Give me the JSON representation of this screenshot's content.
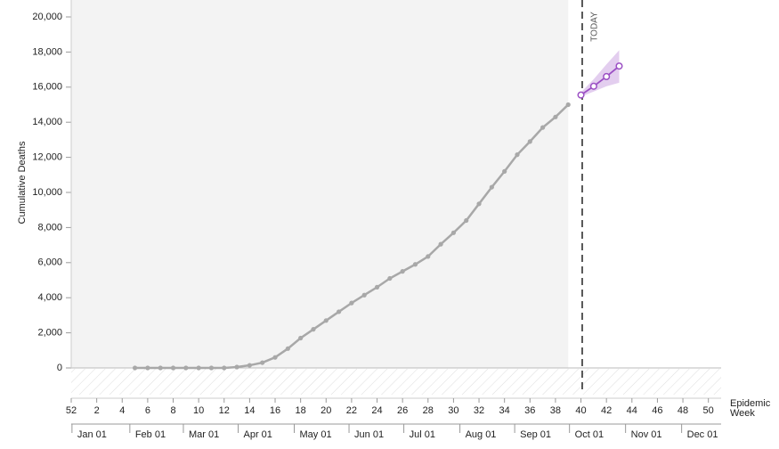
{
  "chart_data": {
    "type": "line",
    "y_label": "Cumulative Deaths",
    "x_label": "Epidemic Week",
    "today_label": "TODAY",
    "today_x": 40.1,
    "observed_until": 39,
    "xlim": [
      0,
      51
    ],
    "ylim": [
      0,
      20000
    ],
    "xticks": [
      {
        "value": 0,
        "label": "52"
      },
      2,
      4,
      6,
      8,
      10,
      12,
      14,
      16,
      18,
      20,
      22,
      24,
      26,
      28,
      30,
      32,
      34,
      36,
      38,
      40,
      42,
      44,
      46,
      48,
      50
    ],
    "month_ticks": [
      {
        "value": 0.06,
        "label": "Jan 01"
      },
      {
        "value": 4.6,
        "label": "Feb 01"
      },
      {
        "value": 8.8,
        "label": "Mar 01"
      },
      {
        "value": 13.1,
        "label": "Apr 01"
      },
      {
        "value": 17.5,
        "label": "May 01"
      },
      {
        "value": 21.8,
        "label": "Jun 01"
      },
      {
        "value": 26.1,
        "label": "Jul 01"
      },
      {
        "value": 30.5,
        "label": "Aug 01"
      },
      {
        "value": 34.8,
        "label": "Sep 01"
      },
      {
        "value": 39.1,
        "label": "Oct 01"
      },
      {
        "value": 43.5,
        "label": "Nov 01"
      },
      {
        "value": 47.9,
        "label": "Dec 01"
      }
    ],
    "yticks": [
      0,
      {
        "value": 2000,
        "label": "2,000"
      },
      {
        "value": 4000,
        "label": "4,000"
      },
      {
        "value": 6000,
        "label": "6,000"
      },
      {
        "value": 8000,
        "label": "8,000"
      },
      {
        "value": 10000,
        "label": "10,000"
      },
      {
        "value": 12000,
        "label": "12,000"
      },
      {
        "value": 14000,
        "label": "14,000"
      },
      {
        "value": 16000,
        "label": "16,000"
      },
      {
        "value": 18000,
        "label": "18,000"
      },
      {
        "value": 20000,
        "label": "20,000"
      }
    ],
    "series": [
      {
        "color": "#a8a8a8",
        "x": [
          5,
          6,
          7,
          8,
          9,
          10,
          11,
          12,
          13,
          14,
          15,
          16,
          17,
          18,
          19,
          20,
          21,
          22,
          23,
          24,
          25,
          26,
          27,
          28,
          29,
          30,
          31,
          32,
          33,
          34,
          35,
          36,
          37,
          38,
          39
        ],
        "values": [
          0,
          0,
          0,
          0,
          0,
          0,
          0,
          0,
          50,
          150,
          300,
          600,
          1100,
          1700,
          2200,
          2700,
          3200,
          3700,
          4150,
          4600,
          5100,
          5500,
          5900,
          6350,
          7050,
          7700,
          8400,
          9350,
          10300,
          11200,
          12150,
          12900,
          13700,
          14300,
          15000
        ]
      },
      {
        "color": "#9b4fc4",
        "x": [
          40,
          41,
          42,
          43
        ],
        "values": [
          15550,
          16050,
          16600,
          17200
        ],
        "lower": [
          15450,
          15750,
          16050,
          16250
        ],
        "upper": [
          15700,
          16450,
          17300,
          18100
        ]
      }
    ]
  }
}
